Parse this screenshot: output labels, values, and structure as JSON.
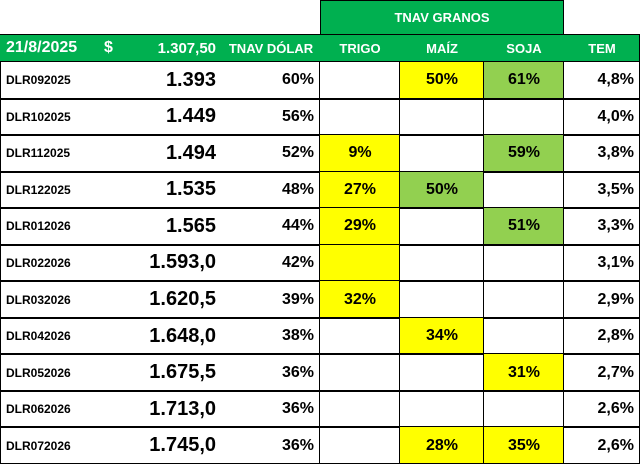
{
  "header": {
    "group_title": "TNAV GRANOS",
    "date": "21/8/2025",
    "currency": "$",
    "fx": "1.307,50",
    "columns": [
      "TNAV DÓLAR",
      "TRIGO",
      "MAÍZ",
      "SOJA",
      "TEM"
    ]
  },
  "table": {
    "rows": [
      {
        "ticker": "DLR092025",
        "price": "1.393",
        "tnav": "60%",
        "grains": [
          null,
          {
            "text": "50%",
            "fill": "#ffff00"
          },
          {
            "text": "61%",
            "fill": "#92d050"
          }
        ],
        "tem": "4,8%"
      },
      {
        "ticker": "DLR102025",
        "price": "1.449",
        "tnav": "56%",
        "grains": [
          null,
          null,
          null
        ],
        "tem": "4,0%"
      },
      {
        "ticker": "DLR112025",
        "price": "1.494",
        "tnav": "52%",
        "grains": [
          {
            "text": "9%",
            "fill": "#ffff00"
          },
          null,
          {
            "text": "59%",
            "fill": "#92d050"
          }
        ],
        "tem": "3,8%"
      },
      {
        "ticker": "DLR122025",
        "price": "1.535",
        "tnav": "48%",
        "grains": [
          {
            "text": "27%",
            "fill": "#ffff00"
          },
          {
            "text": "50%",
            "fill": "#92d050"
          },
          null
        ],
        "tem": "3,5%"
      },
      {
        "ticker": "DLR012026",
        "price": "1.565",
        "tnav": "44%",
        "grains": [
          {
            "text": "29%",
            "fill": "#ffff00"
          },
          null,
          {
            "text": "51%",
            "fill": "#92d050"
          }
        ],
        "tem": "3,3%"
      },
      {
        "ticker": "DLR022026",
        "price": "1.593,0",
        "tnav": "42%",
        "grains": [
          {
            "fill": "#ffff00"
          },
          null,
          null
        ],
        "tem": "3,1%"
      },
      {
        "ticker": "DLR032026",
        "price": "1.620,5",
        "tnav": "39%",
        "grains": [
          {
            "text": "32%",
            "fill": "#ffff00"
          },
          null,
          null
        ],
        "tem": "2,9%"
      },
      {
        "ticker": "DLR042026",
        "price": "1.648,0",
        "tnav": "38%",
        "grains": [
          null,
          {
            "text": "34%",
            "fill": "#ffff00"
          },
          null
        ],
        "tem": "2,8%"
      },
      {
        "ticker": "DLR052026",
        "price": "1.675,5",
        "tnav": "36%",
        "grains": [
          null,
          null,
          {
            "text": "31%",
            "fill": "#ffff00"
          }
        ],
        "tem": "2,7%"
      },
      {
        "ticker": "DLR062026",
        "price": "1.713,0",
        "tnav": "36%",
        "grains": [
          null,
          null,
          null
        ],
        "tem": "2,6%"
      },
      {
        "ticker": "DLR072026",
        "price": "1.745,0",
        "tnav": "36%",
        "grains": [
          null,
          {
            "text": "28%",
            "fill": "#ffff00"
          },
          {
            "text": "35%",
            "fill": "#ffff00"
          }
        ],
        "tem": "2,6%"
      }
    ]
  }
}
